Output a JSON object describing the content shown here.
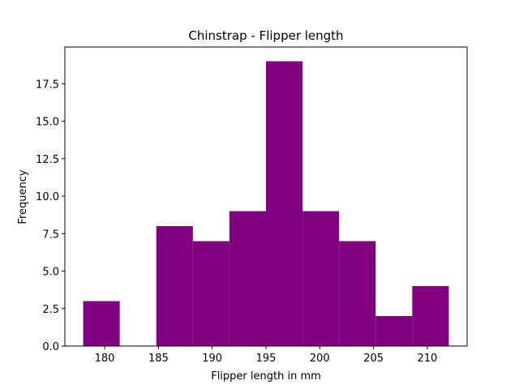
{
  "chart_data": {
    "type": "bar",
    "title": "Chinstrap - Flipper length",
    "xlabel": "Flipper length in mm",
    "ylabel": "Frequency",
    "bar_color": "#800080",
    "bins": [
      {
        "start": 178.0,
        "end": 181.4,
        "count": 3
      },
      {
        "start": 181.4,
        "end": 184.8,
        "count": 0
      },
      {
        "start": 184.8,
        "end": 188.2,
        "count": 8
      },
      {
        "start": 188.2,
        "end": 191.6,
        "count": 7
      },
      {
        "start": 191.6,
        "end": 195.0,
        "count": 9
      },
      {
        "start": 195.0,
        "end": 198.4,
        "count": 19
      },
      {
        "start": 198.4,
        "end": 201.8,
        "count": 9
      },
      {
        "start": 201.8,
        "end": 205.2,
        "count": 7
      },
      {
        "start": 205.2,
        "end": 208.6,
        "count": 2
      },
      {
        "start": 208.6,
        "end": 212.0,
        "count": 4
      }
    ],
    "xlim": [
      176.3,
      213.7
    ],
    "ylim": [
      0,
      19.95
    ],
    "xticks": [
      180,
      185,
      190,
      195,
      200,
      205,
      210
    ],
    "yticks": [
      0.0,
      2.5,
      5.0,
      7.5,
      10.0,
      12.5,
      15.0,
      17.5
    ],
    "grid": false,
    "legend": "none"
  }
}
